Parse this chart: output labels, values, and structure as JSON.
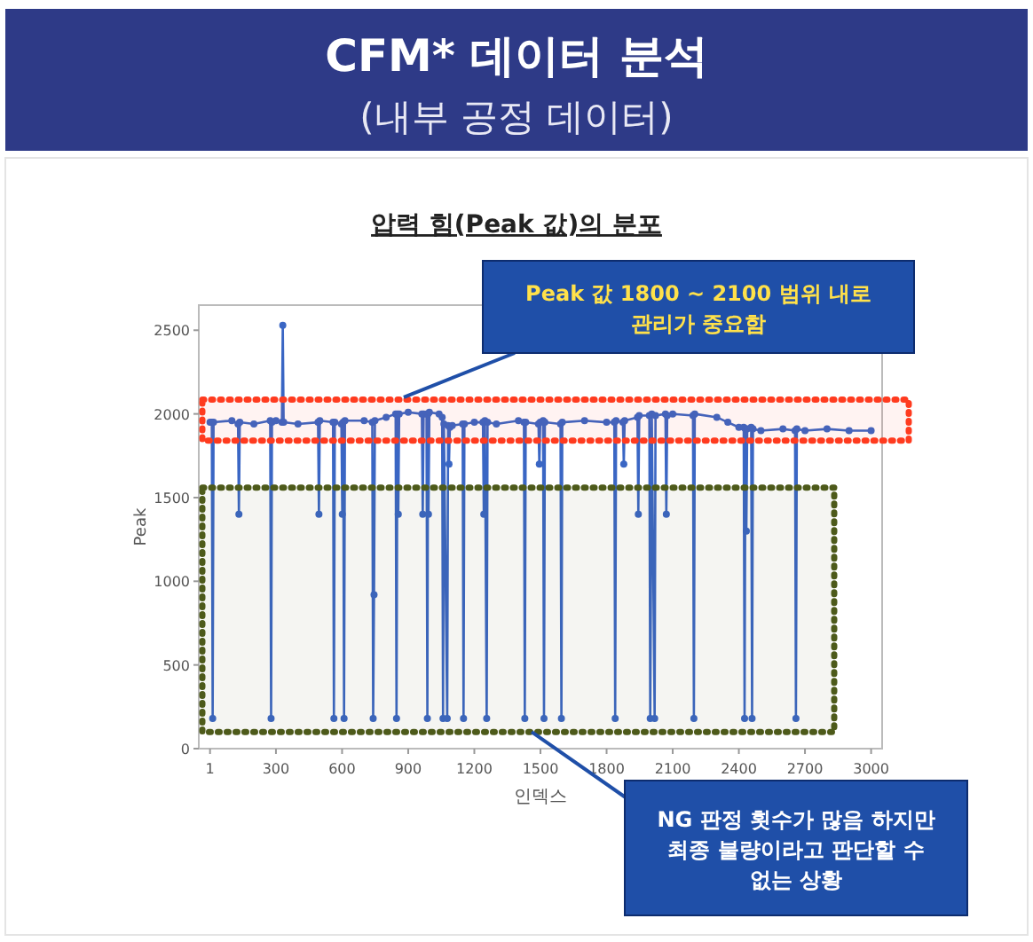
{
  "chart_data": {
    "type": "line",
    "title": "CFM* 데이터 분석",
    "subtitle": "(내부 공정 데이터)",
    "xlabel": "인덱스",
    "ylabel": "Peak",
    "annotations": [
      "압력 힘(Peak 값)의 분포",
      {
        "text": "Peak 값 1800 ~ 2100 범위 내로 관리가 중요함",
        "x": 880,
        "y": 2100
      },
      {
        "text": "NG 판정 횟수가 많음 하지만 최종 불량이라고 판단할 수 없는 상황",
        "x": 1460,
        "y": 100
      }
    ],
    "bands": [
      {
        "axis": "y",
        "from": 1840,
        "to": 2085,
        "color": "#ff3b1f"
      },
      {
        "axis": "y",
        "from": 100,
        "to": 1560,
        "color": "#4d5a1a"
      }
    ],
    "xlim": [
      -50,
      3050
    ],
    "xticks": [
      1,
      300,
      600,
      900,
      1200,
      1500,
      1800,
      2100,
      2400,
      2700,
      3000
    ],
    "ylim": [
      0,
      2650
    ],
    "yticks": [
      0,
      500,
      1000,
      1500,
      2000,
      2500
    ],
    "marker": "circle",
    "line_style": "solid",
    "grid": false,
    "series": [
      {
        "color": "#3a66c4",
        "x": [
          1,
          9,
          13,
          17,
          100,
          128,
          132,
          136,
          200,
          274,
          278,
          282,
          300,
          327,
          331,
          335,
          400,
          491,
          495,
          499,
          559,
          563,
          567,
          597,
          601,
          605,
          609,
          613,
          700,
          737,
          741,
          745,
          749,
          800,
          843,
          847,
          851,
          855,
          859,
          900,
          962,
          966,
          970,
          983,
          987,
          990,
          992,
          996,
          1040,
          1054,
          1058,
          1062,
          1077,
          1081,
          1085,
          1089,
          1100,
          1147,
          1151,
          1155,
          1200,
          1239,
          1243,
          1248,
          1256,
          1260,
          1300,
          1400,
          1425,
          1429,
          1433,
          1491,
          1495,
          1499,
          1512,
          1516,
          1520,
          1591,
          1595,
          1599,
          1700,
          1800,
          1835,
          1839,
          1843,
          1874,
          1878,
          1882,
          1940,
          1944,
          1948,
          1994,
          1998,
          2005,
          2018,
          2022,
          2067,
          2071,
          2075,
          2100,
          2192,
          2196,
          2200,
          2300,
          2350,
          2400,
          2422,
          2426,
          2430,
          2434,
          2438,
          2456,
          2460,
          2464,
          2500,
          2600,
          2655,
          2659,
          2663,
          2700,
          2800,
          2900,
          3000
        ],
        "values": [
          1950,
          1950,
          180,
          1950,
          1960,
          1940,
          1400,
          1950,
          1940,
          1960,
          180,
          1950,
          1960,
          1950,
          2530,
          1950,
          1940,
          1950,
          1400,
          1960,
          1950,
          180,
          1950,
          1940,
          1400,
          1950,
          180,
          1960,
          1960,
          1950,
          180,
          920,
          1960,
          1980,
          2000,
          180,
          2000,
          1400,
          2000,
          2010,
          2000,
          1400,
          2000,
          2000,
          180,
          2000,
          1400,
          2010,
          2000,
          1980,
          180,
          1940,
          180,
          1930,
          1700,
          1920,
          1930,
          1940,
          180,
          1940,
          1950,
          1950,
          1400,
          1960,
          180,
          1950,
          1940,
          1960,
          1950,
          180,
          1950,
          1940,
          1700,
          1950,
          1960,
          180,
          1950,
          1940,
          180,
          1950,
          1960,
          1950,
          1950,
          180,
          1960,
          1950,
          1700,
          1960,
          1980,
          1400,
          1990,
          1990,
          180,
          2000,
          180,
          1990,
          2000,
          1400,
          1990,
          2000,
          1990,
          180,
          2000,
          1980,
          1950,
          1920,
          1920,
          180,
          1910,
          1300,
          1910,
          1920,
          180,
          1910,
          1900,
          1910,
          1900,
          180,
          1910,
          1900,
          1910,
          1900,
          1900
        ]
      }
    ]
  }
}
